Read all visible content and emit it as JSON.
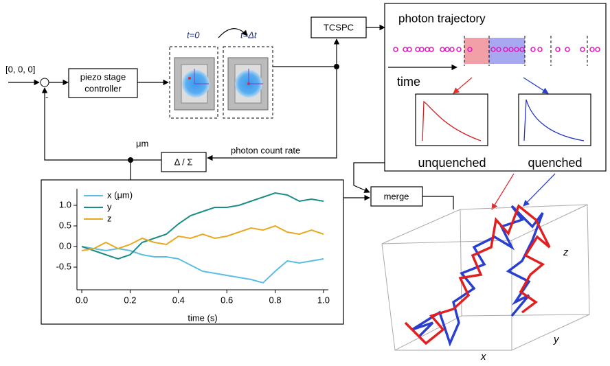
{
  "diagram": {
    "setpoint": "[0, 0, 0]",
    "minus": "-",
    "controller": [
      "piezo stage",
      "controller"
    ],
    "frame_start": "t=0",
    "frame_end": "t=Δt",
    "tcspc": "TCSPC",
    "feedback_unit": "μm",
    "ratio": "Δ / Σ",
    "count_rate": "photon count rate",
    "trajectory_title": "photon trajectory",
    "time": "time",
    "unquenched": "unquenched",
    "quenched": "quenched",
    "merge": "merge",
    "axis_x": "x",
    "axis_y": "y",
    "axis_z": "z"
  },
  "chart_data": {
    "type": "line",
    "xlabel": "time (s)",
    "x": [
      0,
      0.05,
      0.1,
      0.15,
      0.2,
      0.25,
      0.3,
      0.35,
      0.4,
      0.45,
      0.5,
      0.55,
      0.6,
      0.65,
      0.7,
      0.75,
      0.8,
      0.85,
      0.9,
      0.95,
      1.0
    ],
    "series": [
      {
        "name": "x (μm)",
        "color": "#5bbde3",
        "values": [
          0,
          -0.05,
          -0.1,
          -0.05,
          -0.1,
          -0.2,
          -0.25,
          -0.25,
          -0.3,
          -0.45,
          -0.6,
          -0.65,
          -0.7,
          -0.75,
          -0.8,
          -0.88,
          -0.6,
          -0.35,
          -0.4,
          -0.35,
          -0.3
        ]
      },
      {
        "name": "y",
        "color": "#1b8c86",
        "values": [
          0,
          -0.1,
          -0.2,
          -0.3,
          -0.2,
          0.1,
          0.2,
          0.3,
          0.55,
          0.75,
          0.85,
          0.95,
          0.95,
          1.0,
          1.1,
          1.2,
          1.3,
          1.25,
          1.1,
          1.15,
          1.1
        ]
      },
      {
        "name": "z",
        "color": "#e8a820",
        "values": [
          -0.1,
          -0.05,
          0.1,
          -0.05,
          0.05,
          0.2,
          0.1,
          0.05,
          0.25,
          0.2,
          0.3,
          0.2,
          0.25,
          0.35,
          0.45,
          0.4,
          0.5,
          0.35,
          0.3,
          0.4,
          0.3
        ]
      }
    ],
    "xlim": [
      -0.02,
      1.02
    ],
    "ylim": [
      -1.05,
      1.4
    ],
    "xticks": [
      {
        "value": 0,
        "label": "0.0"
      },
      0.2,
      0.4,
      0.6,
      0.8,
      {
        "value": 1,
        "label": "1.0"
      }
    ],
    "yticks": [
      -0.5,
      {
        "value": 0,
        "label": "0.0"
      },
      0.5,
      {
        "value": 1,
        "label": "1.0"
      }
    ]
  }
}
